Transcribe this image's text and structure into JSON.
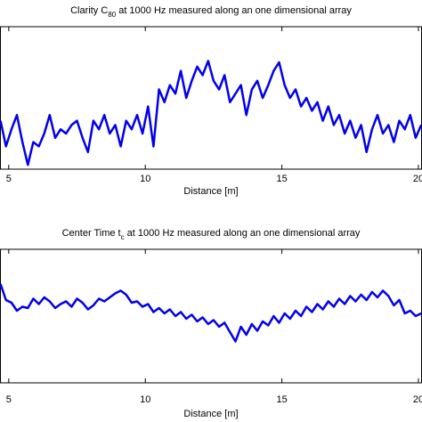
{
  "chart_data": [
    {
      "type": "line",
      "title": [
        {
          "text": "Clarity C"
        },
        {
          "text": "80",
          "sub": true
        },
        {
          "text": " at 1000 Hz measured along an one dimensional array"
        }
      ],
      "xlabel": "Distance [m]",
      "xlim": [
        4.68,
        20.13
      ],
      "xticks": [
        5,
        10,
        15,
        20
      ],
      "ylim": [
        0,
        10
      ],
      "color": "#0000ee",
      "x": [
        4.7,
        4.9,
        5.1,
        5.3,
        5.5,
        5.7,
        5.9,
        6.1,
        6.3,
        6.5,
        6.7,
        6.9,
        7.1,
        7.3,
        7.5,
        7.7,
        7.9,
        8.1,
        8.3,
        8.5,
        8.7,
        8.9,
        9.1,
        9.3,
        9.5,
        9.7,
        9.9,
        10.1,
        10.3,
        10.5,
        10.7,
        10.9,
        11.1,
        11.3,
        11.5,
        11.7,
        11.9,
        12.1,
        12.3,
        12.5,
        12.7,
        12.9,
        13.1,
        13.3,
        13.5,
        13.7,
        13.9,
        14.1,
        14.3,
        14.5,
        14.7,
        14.9,
        15.1,
        15.3,
        15.5,
        15.7,
        15.9,
        16.1,
        16.3,
        16.5,
        16.7,
        16.9,
        17.1,
        17.3,
        17.5,
        17.7,
        17.9,
        18.1,
        18.3,
        18.5,
        18.7,
        18.9,
        19.1,
        19.3,
        19.5,
        19.7,
        19.9,
        20.1
      ],
      "values": [
        3.4,
        1.6,
        2.8,
        3.8,
        1.9,
        0.3,
        1.9,
        1.6,
        2.5,
        3.8,
        2.2,
        2.8,
        2.5,
        3.1,
        3.4,
        2.2,
        1.2,
        3.4,
        2.8,
        3.8,
        2.5,
        3.1,
        1.6,
        3.4,
        2.8,
        3.8,
        2.5,
        4.4,
        1.6,
        5.6,
        4.7,
        5.9,
        5.3,
        6.9,
        5.0,
        6.2,
        7.2,
        6.6,
        7.6,
        6.2,
        5.6,
        6.6,
        4.7,
        5.3,
        5.9,
        3.8,
        5.6,
        6.2,
        5.0,
        5.9,
        6.9,
        7.5,
        5.9,
        5.0,
        5.6,
        4.4,
        5.0,
        4.1,
        4.7,
        3.4,
        4.4,
        3.1,
        3.8,
        2.5,
        3.4,
        2.2,
        3.1,
        1.2,
        2.8,
        3.8,
        2.5,
        3.1,
        1.9,
        3.4,
        2.8,
        3.8,
        2.2,
        3.1
      ]
    },
    {
      "type": "line",
      "title": [
        {
          "text": "Center Time t"
        },
        {
          "text": "c",
          "sub": true
        },
        {
          "text": " at 1000 Hz measured along an one dimensional array"
        }
      ],
      "xlabel": "Distance [m]",
      "xlim": [
        4.68,
        20.13
      ],
      "xticks": [
        5,
        10,
        15,
        20
      ],
      "ylim": [
        0,
        10
      ],
      "color": "#0000ee",
      "x": [
        4.7,
        4.9,
        5.1,
        5.3,
        5.5,
        5.7,
        5.9,
        6.1,
        6.3,
        6.5,
        6.7,
        6.9,
        7.1,
        7.3,
        7.5,
        7.7,
        7.9,
        8.1,
        8.3,
        8.5,
        8.7,
        8.9,
        9.1,
        9.3,
        9.5,
        9.7,
        9.9,
        10.1,
        10.3,
        10.5,
        10.7,
        10.9,
        11.1,
        11.3,
        11.5,
        11.7,
        11.9,
        12.1,
        12.3,
        12.5,
        12.7,
        12.9,
        13.1,
        13.3,
        13.5,
        13.7,
        13.9,
        14.1,
        14.3,
        14.5,
        14.7,
        14.9,
        15.1,
        15.3,
        15.5,
        15.7,
        15.9,
        16.1,
        16.3,
        16.5,
        16.7,
        16.9,
        17.1,
        17.3,
        17.5,
        17.7,
        17.9,
        18.1,
        18.3,
        18.5,
        18.7,
        18.9,
        19.1,
        19.3,
        19.5,
        19.7,
        19.9,
        20.1
      ],
      "values": [
        7.4,
        6.2,
        6.0,
        5.4,
        5.7,
        5.6,
        6.3,
        5.9,
        6.4,
        6.1,
        5.6,
        5.9,
        6.1,
        5.7,
        6.3,
        6.0,
        5.5,
        5.8,
        6.3,
        6.1,
        6.4,
        6.7,
        6.9,
        6.6,
        6.0,
        6.1,
        5.7,
        5.9,
        5.3,
        5.6,
        5.2,
        5.5,
        5.0,
        5.3,
        4.8,
        5.1,
        4.6,
        4.9,
        4.4,
        4.7,
        4.2,
        4.5,
        3.8,
        3.1,
        4.2,
        3.6,
        4.4,
        3.9,
        4.6,
        4.3,
        5.0,
        4.5,
        5.2,
        4.8,
        5.4,
        5.0,
        5.7,
        5.3,
        5.9,
        5.5,
        6.1,
        5.7,
        6.3,
        5.9,
        6.5,
        6.1,
        6.6,
        6.2,
        6.8,
        6.4,
        6.9,
        6.5,
        5.8,
        6.2,
        5.2,
        5.4,
        5.0,
        5.2
      ]
    }
  ]
}
